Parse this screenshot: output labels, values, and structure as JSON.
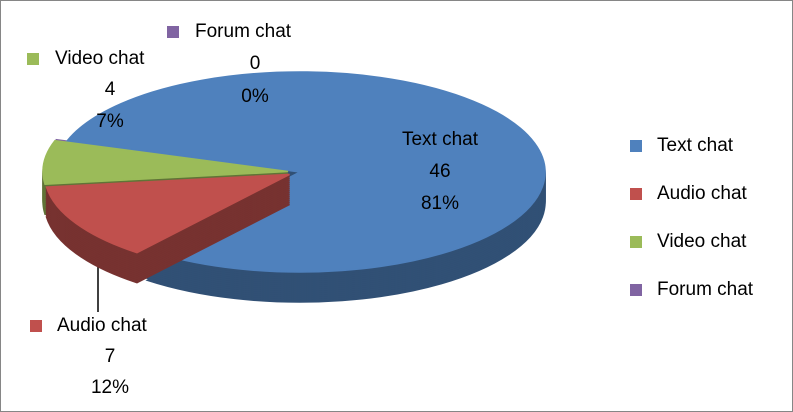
{
  "chart_data": {
    "type": "pie3d",
    "categories": [
      "Text chat",
      "Audio chat",
      "Video chat",
      "Forum chat"
    ],
    "values": [
      46,
      7,
      4,
      0
    ],
    "percentages": [
      81,
      12,
      7,
      0
    ],
    "percentage_labels": [
      "81%",
      "12%",
      "7%",
      "0%"
    ],
    "colors": [
      "#4f81bd",
      "#c0504d",
      "#9bbb59",
      "#8064a2"
    ],
    "legend": "right"
  }
}
